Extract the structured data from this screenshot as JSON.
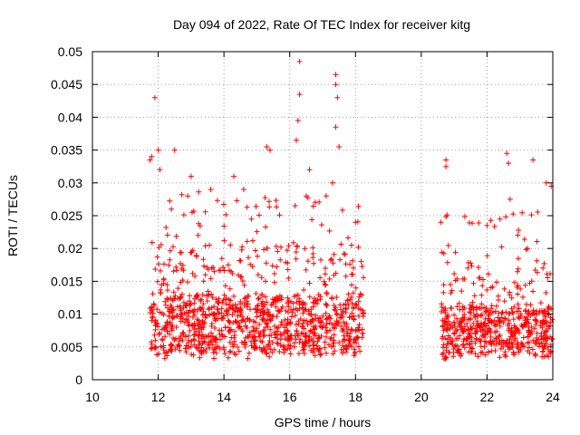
{
  "chart_data": {
    "type": "scatter",
    "title": "Day 094 of 2022, Rate Of TEC Index for receiver kitg",
    "xlabel": "GPS time / hours",
    "ylabel": "ROTI / TECUs",
    "xlim": [
      10,
      24
    ],
    "ylim": [
      0,
      0.05
    ],
    "xticks": [
      "10",
      "12",
      "14",
      "16",
      "18",
      "20",
      "22",
      "24"
    ],
    "yticks": [
      "0",
      "0.005",
      "0.01",
      "0.015",
      "0.02",
      "0.025",
      "0.03",
      "0.035",
      "0.04",
      "0.045",
      "0.05"
    ],
    "grid": true,
    "marker": "+",
    "color": "#ff0000",
    "series": [
      {
        "name": "ROTI",
        "segments": [
          {
            "x_start": 11.75,
            "x_end": 18.25,
            "typical_low": 0.004,
            "typical_high": 0.015
          },
          {
            "x_start": 20.6,
            "x_end": 24.0,
            "typical_low": 0.004,
            "typical_high": 0.013
          }
        ],
        "notable_points": [
          [
            11.75,
            0.0335
          ],
          [
            11.8,
            0.034
          ],
          [
            11.9,
            0.043
          ],
          [
            12.0,
            0.035
          ],
          [
            12.05,
            0.032
          ],
          [
            12.5,
            0.035
          ],
          [
            12.4,
            0.026
          ],
          [
            12.9,
            0.028
          ],
          [
            13.0,
            0.031
          ],
          [
            13.6,
            0.029
          ],
          [
            14.3,
            0.031
          ],
          [
            14.6,
            0.029
          ],
          [
            15.3,
            0.0355
          ],
          [
            15.4,
            0.035
          ],
          [
            16.3,
            0.0485
          ],
          [
            16.3,
            0.0435
          ],
          [
            16.25,
            0.0395
          ],
          [
            16.2,
            0.0365
          ],
          [
            16.6,
            0.032
          ],
          [
            16.5,
            0.028
          ],
          [
            17.4,
            0.0465
          ],
          [
            17.4,
            0.045
          ],
          [
            17.45,
            0.043
          ],
          [
            17.4,
            0.0385
          ],
          [
            17.5,
            0.0355
          ],
          [
            17.3,
            0.03
          ],
          [
            18.0,
            0.024
          ],
          [
            20.6,
            0.024
          ],
          [
            20.75,
            0.0335
          ],
          [
            20.75,
            0.0325
          ],
          [
            22.6,
            0.0345
          ],
          [
            22.65,
            0.033
          ],
          [
            23.4,
            0.0335
          ],
          [
            23.95,
            0.0295
          ],
          [
            23.8,
            0.03
          ],
          [
            22.7,
            0.0275
          ],
          [
            22.0,
            0.0235
          ]
        ]
      }
    ]
  }
}
